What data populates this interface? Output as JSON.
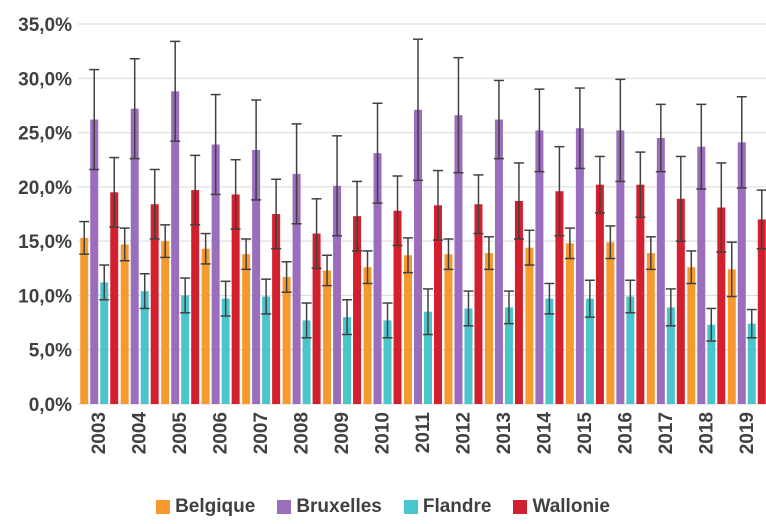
{
  "chart_data": {
    "type": "bar",
    "title": "",
    "xlabel": "",
    "ylabel": "",
    "ylim": [
      0,
      35
    ],
    "y_ticks": [
      "0,0%",
      "5,0%",
      "10,0%",
      "15,0%",
      "20,0%",
      "25,0%",
      "30,0%",
      "35,0%"
    ],
    "grid": "horizontal",
    "legend_position": "bottom",
    "error_bars": true,
    "categories": [
      "2003",
      "2004",
      "2005",
      "2006",
      "2007",
      "2008",
      "2009",
      "2010",
      "2011",
      "2012",
      "2013",
      "2014",
      "2015",
      "2016",
      "2017",
      "2018",
      "2019"
    ],
    "series": [
      {
        "name": "Belgique",
        "color": "#F79A2E",
        "values": [
          15.3,
          14.7,
          15.0,
          14.3,
          13.8,
          11.7,
          12.3,
          12.6,
          13.7,
          13.8,
          13.9,
          14.4,
          14.8,
          14.9,
          13.9,
          12.6,
          12.4
        ],
        "error": [
          1.5,
          1.5,
          1.5,
          1.4,
          1.4,
          1.4,
          1.4,
          1.5,
          1.6,
          1.4,
          1.5,
          1.6,
          1.4,
          1.5,
          1.5,
          1.5,
          2.5
        ]
      },
      {
        "name": "Bruxelles",
        "color": "#9B6DBD",
        "values": [
          26.2,
          27.2,
          28.8,
          23.9,
          23.4,
          21.2,
          20.1,
          23.1,
          27.1,
          26.6,
          26.2,
          25.2,
          25.4,
          25.2,
          24.5,
          23.7,
          24.1
        ],
        "error": [
          4.6,
          4.6,
          4.6,
          4.6,
          4.6,
          4.6,
          4.6,
          4.6,
          6.5,
          5.3,
          3.6,
          3.8,
          3.7,
          4.7,
          3.1,
          3.9,
          4.2
        ]
      },
      {
        "name": "Flandre",
        "color": "#4BC5CC",
        "values": [
          11.2,
          10.4,
          10.0,
          9.7,
          9.9,
          7.7,
          8.0,
          7.7,
          8.5,
          8.8,
          8.9,
          9.7,
          9.7,
          9.9,
          8.9,
          7.3,
          7.4
        ],
        "error": [
          1.6,
          1.6,
          1.6,
          1.6,
          1.6,
          1.6,
          1.6,
          1.6,
          2.1,
          1.6,
          1.5,
          1.4,
          1.7,
          1.5,
          1.7,
          1.5,
          1.3
        ]
      },
      {
        "name": "Wallonie",
        "color": "#D3202E",
        "values": [
          19.5,
          18.4,
          19.7,
          19.3,
          17.5,
          15.7,
          17.3,
          17.8,
          18.3,
          18.4,
          18.7,
          19.6,
          20.2,
          20.2,
          18.9,
          18.1,
          17.0
        ],
        "error": [
          3.2,
          3.2,
          3.2,
          3.2,
          3.2,
          3.2,
          3.2,
          3.2,
          3.2,
          2.7,
          3.5,
          4.1,
          2.6,
          3.0,
          3.9,
          4.1,
          2.7
        ]
      }
    ]
  }
}
